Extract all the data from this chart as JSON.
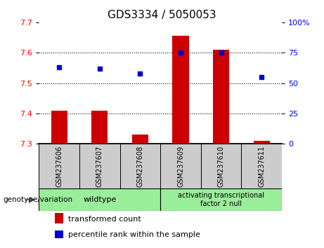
{
  "title": "GDS3334 / 5050053",
  "samples": [
    "GSM237606",
    "GSM237607",
    "GSM237608",
    "GSM237609",
    "GSM237610",
    "GSM237611"
  ],
  "transformed_count": [
    7.41,
    7.41,
    7.33,
    7.655,
    7.61,
    7.31
  ],
  "percentile_rank": [
    63,
    62,
    58,
    75,
    75,
    55
  ],
  "bar_baseline": 7.3,
  "ylim_left": [
    7.3,
    7.7
  ],
  "ylim_right": [
    0,
    100
  ],
  "yticks_left": [
    7.3,
    7.4,
    7.5,
    7.6,
    7.7
  ],
  "yticks_right": [
    0,
    25,
    50,
    75,
    100
  ],
  "ytick_labels_left": [
    "7.3",
    "7.4",
    "7.5",
    "7.6",
    "7.7"
  ],
  "ytick_labels_right": [
    "0",
    "25",
    "50",
    "75",
    "100%"
  ],
  "bar_color": "#cc0000",
  "dot_color": "#0000cc",
  "groups": [
    {
      "label": "wildtype",
      "start": 0,
      "end": 3
    },
    {
      "label": "activating transcriptional\nfactor 2 null",
      "start": 3,
      "end": 6
    }
  ],
  "group_color": "#99ee99",
  "sample_box_color": "#cccccc",
  "legend_tc_label": "transformed count",
  "legend_pr_label": "percentile rank within the sample",
  "genotype_label": "genotype/variation"
}
